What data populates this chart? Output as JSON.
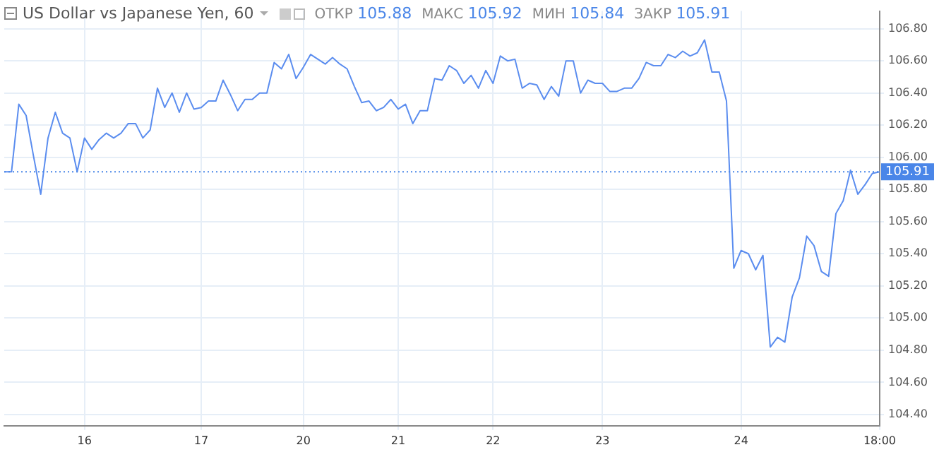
{
  "chart_data": {
    "type": "line",
    "title": "US Dollar vs Japanese Yen, 60",
    "annotations": [
      "ОТКР 105.88",
      "МАКС 105.92",
      "МИН 105.84",
      "ЗАКР 105.91"
    ],
    "categories": [
      null,
      null,
      null,
      null,
      null,
      null,
      null,
      null,
      null,
      null,
      null,
      "16",
      null,
      null,
      null,
      null,
      null,
      null,
      null,
      null,
      null,
      null,
      null,
      null,
      null,
      null,
      null,
      "17",
      null,
      null,
      null,
      null,
      null,
      null,
      null,
      null,
      null,
      null,
      null,
      null,
      null,
      "20",
      null,
      null,
      null,
      null,
      null,
      null,
      null,
      null,
      null,
      null,
      null,
      null,
      "21",
      null,
      null,
      null,
      null,
      null,
      null,
      null,
      null,
      null,
      null,
      null,
      null,
      "22",
      null,
      null,
      null,
      null,
      null,
      null,
      null,
      null,
      null,
      null,
      null,
      null,
      null,
      null,
      "23",
      null,
      null,
      null,
      null,
      null,
      null,
      null,
      null,
      null,
      null,
      null,
      null,
      null,
      null,
      null,
      null,
      null,
      null,
      "24",
      null,
      null,
      null,
      null,
      null,
      null,
      null,
      null,
      null,
      null,
      null,
      null,
      null,
      null,
      null,
      null,
      null,
      null,
      "18:00"
    ],
    "series": [
      {
        "color": "#5b8def",
        "values": [
          105.91,
          105.91,
          106.33,
          106.26,
          106.01,
          105.77,
          106.12,
          106.28,
          106.15,
          106.12,
          105.91,
          106.12,
          106.05,
          106.11,
          106.15,
          106.12,
          106.15,
          106.21,
          106.21,
          106.12,
          106.17,
          106.43,
          106.31,
          106.4,
          106.28,
          106.4,
          106.3,
          106.31,
          106.35,
          106.35,
          106.48,
          106.39,
          106.29,
          106.36,
          106.36,
          106.4,
          106.4,
          106.59,
          106.55,
          106.64,
          106.49,
          106.56,
          106.64,
          106.61,
          106.58,
          106.62,
          106.58,
          106.55,
          106.44,
          106.34,
          106.35,
          106.29,
          106.31,
          106.36,
          106.3,
          106.33,
          106.21,
          106.29,
          106.29,
          106.49,
          106.48,
          106.57,
          106.54,
          106.46,
          106.51,
          106.43,
          106.54,
          106.46,
          106.63,
          106.6,
          106.61,
          106.43,
          106.46,
          106.45,
          106.36,
          106.44,
          106.38,
          106.6,
          106.6,
          106.4,
          106.48,
          106.46,
          106.46,
          106.41,
          106.41,
          106.43,
          106.43,
          106.49,
          106.59,
          106.57,
          106.57,
          106.64,
          106.62,
          106.66,
          106.63,
          106.65,
          106.73,
          106.53,
          106.53,
          106.35,
          105.31,
          105.42,
          105.4,
          105.3,
          105.39,
          104.82,
          104.88,
          104.85,
          105.13,
          105.25,
          105.51,
          105.45,
          105.29,
          105.26,
          105.65,
          105.73,
          105.92,
          105.77,
          105.83,
          105.9,
          105.91
        ]
      }
    ],
    "ylim": [
      104.33,
      106.91
    ],
    "yticks": [
      {
        "value": 104.4,
        "label": "104.40"
      },
      {
        "value": 104.6,
        "label": "104.60"
      },
      {
        "value": 104.8,
        "label": "104.80"
      },
      {
        "value": 105.0,
        "label": "105.00"
      },
      {
        "value": 105.2,
        "label": "105.20"
      },
      {
        "value": 105.4,
        "label": "105.40"
      },
      {
        "value": 105.6,
        "label": "105.60"
      },
      {
        "value": 105.8,
        "label": "105.80"
      },
      {
        "value": 106.0,
        "label": "106.00"
      },
      {
        "value": 106.2,
        "label": "106.20"
      },
      {
        "value": 106.4,
        "label": "106.40"
      },
      {
        "value": 106.6,
        "label": "106.60"
      },
      {
        "value": 106.8,
        "label": "106.80"
      }
    ],
    "ref_lines": [
      {
        "axis": "y",
        "value": 105.91,
        "label": "105.91",
        "color": "#4a86e8",
        "line_style": "dotted"
      }
    ],
    "grid": true,
    "legend": false,
    "marker": "none",
    "line_style": "solid"
  }
}
